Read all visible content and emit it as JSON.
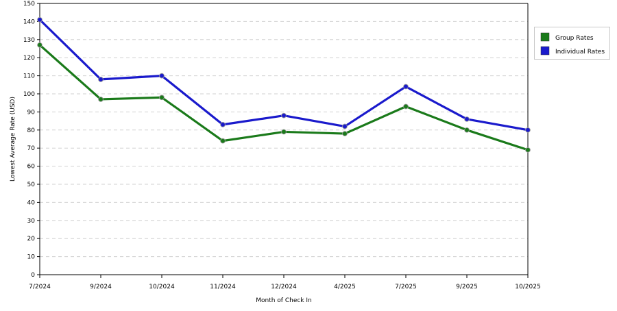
{
  "chart_data": {
    "type": "line",
    "title": "",
    "xlabel": "Month of Check In",
    "ylabel": "Lowest Average Rate (USD)",
    "ylim": [
      0,
      150
    ],
    "y_ticks": [
      0,
      10,
      20,
      30,
      40,
      50,
      60,
      70,
      80,
      90,
      100,
      110,
      120,
      130,
      140,
      150
    ],
    "grid": true,
    "legend_position": "top-right",
    "categories": [
      "7/2024",
      "9/2024",
      "10/2024",
      "11/2024",
      "12/2024",
      "4/2025",
      "7/2025",
      "9/2025",
      "10/2025"
    ],
    "series": [
      {
        "name": "Group Rates",
        "color": "#1a7a1a",
        "values": [
          127,
          97,
          98,
          74,
          79,
          78,
          93,
          80,
          69
        ]
      },
      {
        "name": "Individual Rates",
        "color": "#1a1acc",
        "values": [
          141,
          108,
          110,
          83,
          88,
          82,
          104,
          86,
          80
        ]
      }
    ]
  }
}
